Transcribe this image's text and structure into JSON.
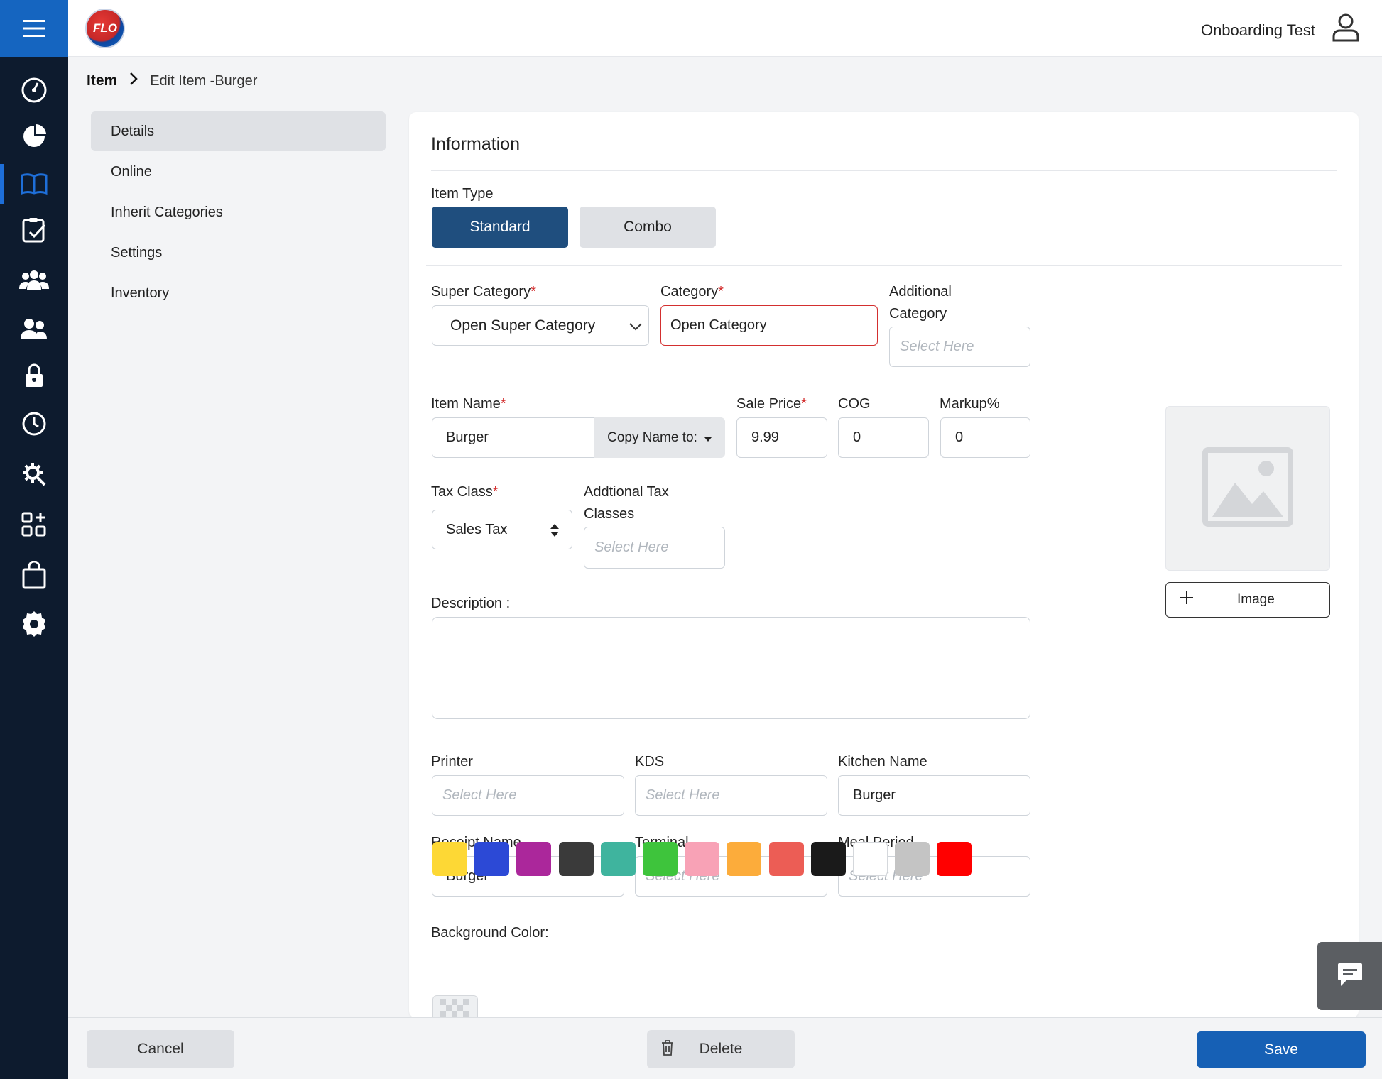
{
  "header": {
    "logo_text": "FLO",
    "user_name": "Onboarding Test"
  },
  "nav_icons": [
    "menu-icon",
    "dashboard-icon",
    "reports-icon",
    "menu-book-icon",
    "checklist-icon",
    "customers-icon",
    "employees-icon",
    "lock-icon",
    "clock-icon",
    "integrations-icon",
    "add-apps-icon",
    "orders-bag-icon",
    "settings-icon"
  ],
  "breadcrumb": {
    "root": "Item",
    "current": "Edit Item -Burger"
  },
  "subnav": {
    "items": [
      {
        "label": "Details",
        "active": true
      },
      {
        "label": "Online"
      },
      {
        "label": "Inherit Categories"
      },
      {
        "label": "Settings"
      },
      {
        "label": "Inventory"
      }
    ]
  },
  "form": {
    "section_title": "Information",
    "item_type_label": "Item Type",
    "item_type_options": [
      "Standard",
      "Combo"
    ],
    "item_type_selected": "Standard",
    "super_category": {
      "label": "Super Category",
      "required": "*",
      "value": "Open Super Category"
    },
    "category": {
      "label": "Category",
      "required": "*",
      "value": "Open Category"
    },
    "additional_category": {
      "label_1": "Additional",
      "label_2": "Category",
      "placeholder": "Select Here"
    },
    "item_name": {
      "label": "Item Name",
      "required": "*",
      "value": "Burger",
      "copy_button": "Copy Name to:"
    },
    "sale_price": {
      "label": "Sale Price",
      "required": "*",
      "value": "9.99"
    },
    "cog": {
      "label": "COG",
      "value": "0"
    },
    "markup": {
      "label": "Markup%",
      "value": "0"
    },
    "tax_class": {
      "label": "Tax Class",
      "required": "*",
      "value": "Sales Tax"
    },
    "additional_tax": {
      "label_1": "Addtional Tax",
      "label_2": "Classes",
      "placeholder": "Select Here"
    },
    "description": {
      "label": "Description :",
      "value": ""
    },
    "printer": {
      "label": "Printer",
      "placeholder": "Select Here"
    },
    "kds": {
      "label": "KDS",
      "placeholder": "Select Here"
    },
    "kitchen_name": {
      "label": "Kitchen Name",
      "value": "Burger"
    },
    "receipt_name": {
      "label": "Receipt Name",
      "value": "Burger"
    },
    "terminal": {
      "label": "Terminal",
      "placeholder": "Select Here"
    },
    "meal_period": {
      "label": "Meal Period",
      "placeholder": "Select Here"
    },
    "background_color": {
      "label": "Background Color:",
      "colors": [
        "#fdd835",
        "#2c49d6",
        "#ab279b",
        "#3a3a3a",
        "#3fb49e",
        "#3ec43c",
        "#f8a2b6",
        "#fcac3b",
        "#ec5d55",
        "#1a1a1a",
        "#ffffff",
        "#c4c4c4",
        "#ff0000"
      ],
      "transparent_option": "transparent"
    },
    "image_button": "Image"
  },
  "footer": {
    "cancel": "Cancel",
    "delete": "Delete",
    "save": "Save"
  },
  "colors": {
    "rail": "#0d1b2e",
    "accent": "#1565c0",
    "active_segment": "#1f4e7e",
    "required": "#d32f2f"
  }
}
